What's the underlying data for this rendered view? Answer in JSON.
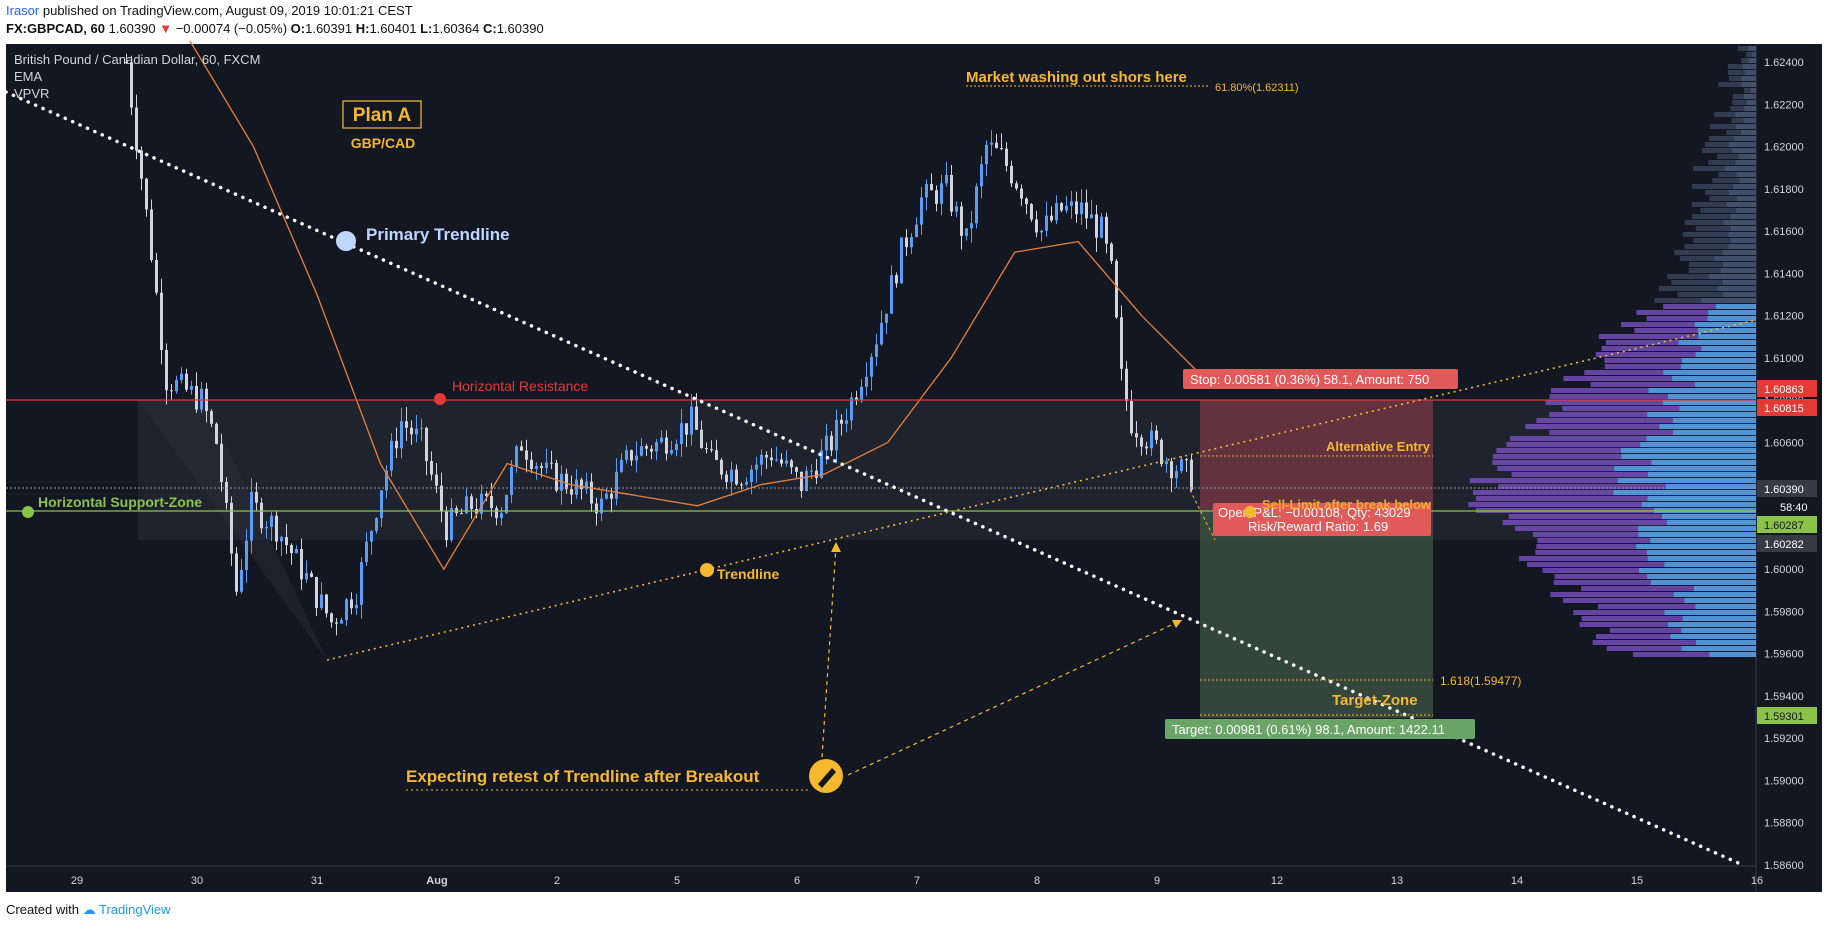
{
  "header": {
    "author": "Irasor",
    "published": "published on TradingView.com, August 09, 2019 10:01:21 CEST",
    "symbol": "FX:GBPCAD, 60",
    "last": "1.60390",
    "arrow": "▼",
    "change": "−0.00074 (−0.05%)",
    "o_label": "O:",
    "o_value": "1.60391",
    "h_label": "H:",
    "h_value": "1.60401",
    "l_label": "L:",
    "l_value": "1.60364",
    "c_label": "C:",
    "c_value": "1.60390"
  },
  "legend": {
    "title": "British Pound / Canadian Dollar, 60, FXCM",
    "indicator1": "EMA",
    "indicator2": "VPVR"
  },
  "footer": {
    "created": "Created with",
    "brand": "TradingView"
  },
  "annotations": {
    "plan": "Plan A",
    "pair": "GBP/CAD",
    "primary_trendline": "Primary Trendline",
    "horizontal_resistance": "Horizontal Resistance",
    "horizontal_support": "Horizontal Support-Zone",
    "trendline": "Trendline",
    "market_washing": "Market washing out shors here",
    "fib_618_top": "61.80%(1.62311)",
    "alternative_entry": "Alternative Entry",
    "sell_limit": "Sell-Limit after break below",
    "fib_1618": "1.618(1.59477)",
    "target_zone": "Target-Zone",
    "expecting": "Expecting retest of Trendline after Breakout",
    "stop_box": "Stop: 0.00581 (0.36%) 58.1, Amount: 750",
    "open_pl": "Open P&L: −0.00108, Qty: 43029",
    "risk_reward": "Risk/Reward Ratio: 1.69",
    "target_box": "Target: 0.00981 (0.61%) 98.1, Amount: 1422.11"
  },
  "colors": {
    "background": "#131722",
    "bull_candle": "#5b9cf6",
    "bear_candle": "#d1d4dc",
    "ema": "#e8813a",
    "resistance": "#e53935",
    "support": "#8bc34a",
    "annotation": "#f5b82e",
    "stop_zone": "#7a3a44",
    "target_zone": "#3c5240"
  },
  "chart_data": {
    "type": "candlestick",
    "title": "British Pound / Canadian Dollar, 60, FXCM",
    "xlabel": "",
    "ylabel": "",
    "ylim": [
      1.586,
      1.625
    ],
    "y_ticks": [
      "1.62400",
      "1.62200",
      "1.62000",
      "1.61800",
      "1.61600",
      "1.61400",
      "1.61200",
      "1.61000",
      "1.60800",
      "1.60600",
      "1.60400",
      "1.60200",
      "1.60000",
      "1.59800",
      "1.59600",
      "1.59400",
      "1.59200",
      "1.59000",
      "1.58800",
      "1.58600"
    ],
    "x_ticks": [
      "29",
      "30",
      "31",
      "Aug",
      "2",
      "5",
      "6",
      "7",
      "8",
      "9",
      "12",
      "13",
      "14",
      "15",
      "16"
    ],
    "price_labels": {
      "resistance_a": "1.60863",
      "resistance_b": "1.60815",
      "current": "1.60390",
      "countdown": "58:40",
      "support_a": "1.60287",
      "support_b": "1.60282",
      "target": "1.59301"
    },
    "levels": {
      "horizontal_resistance": 1.6083,
      "horizontal_support": 1.6028,
      "entry": 1.6028,
      "stop": 1.6086,
      "target": 1.593,
      "fib_1618": 1.59477,
      "fib_618": 1.62311
    },
    "series": [
      {
        "name": "EMA",
        "values": [
          1.625,
          1.62,
          1.613,
          1.605,
          1.6,
          1.605,
          1.604,
          1.6035,
          1.603,
          1.604,
          1.6045,
          1.606,
          1.61,
          1.615,
          1.6155,
          1.612,
          1.609
        ]
      }
    ],
    "grid": false,
    "legend": "top-left"
  }
}
